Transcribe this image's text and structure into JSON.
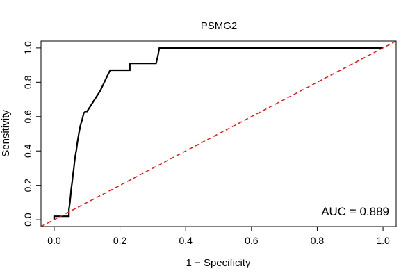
{
  "chart_data": {
    "type": "line",
    "title": "PSMG2",
    "xlabel": "1 − Specificity",
    "ylabel": "Sensitivity",
    "xlim": [
      -0.04,
      1.04
    ],
    "ylim": [
      -0.04,
      1.04
    ],
    "xticks": [
      0.0,
      0.2,
      0.4,
      0.6,
      0.8,
      1.0
    ],
    "yticks": [
      0.0,
      0.2,
      0.4,
      0.6,
      0.8,
      1.0
    ],
    "xtick_labels": [
      "0.0",
      "0.2",
      "0.4",
      "0.6",
      "0.8",
      "1.0"
    ],
    "ytick_labels": [
      "0.0",
      "0.2",
      "0.4",
      "0.6",
      "0.8",
      "1.0"
    ],
    "grid": false,
    "annotation": "AUC = 0.889",
    "series": [
      {
        "color": "#000000",
        "style": "solid",
        "x": [
          0.0,
          0.0,
          0.045,
          0.045,
          0.048,
          0.05,
          0.052,
          0.055,
          0.057,
          0.06,
          0.062,
          0.065,
          0.068,
          0.07,
          0.075,
          0.08,
          0.085,
          0.09,
          0.095,
          0.1,
          0.11,
          0.12,
          0.13,
          0.14,
          0.15,
          0.16,
          0.17,
          0.2,
          0.23,
          0.23,
          0.31,
          0.315,
          0.32,
          1.0
        ],
        "y": [
          0.0,
          0.02,
          0.02,
          0.06,
          0.1,
          0.14,
          0.18,
          0.22,
          0.26,
          0.3,
          0.34,
          0.38,
          0.41,
          0.44,
          0.5,
          0.55,
          0.58,
          0.62,
          0.63,
          0.63,
          0.66,
          0.69,
          0.72,
          0.75,
          0.79,
          0.83,
          0.87,
          0.87,
          0.87,
          0.91,
          0.91,
          0.95,
          1.0,
          1.0
        ]
      },
      {
        "color": "#e31a1c",
        "style": "dashed",
        "x": [
          -0.04,
          1.04
        ],
        "y": [
          -0.04,
          1.04
        ]
      }
    ]
  }
}
